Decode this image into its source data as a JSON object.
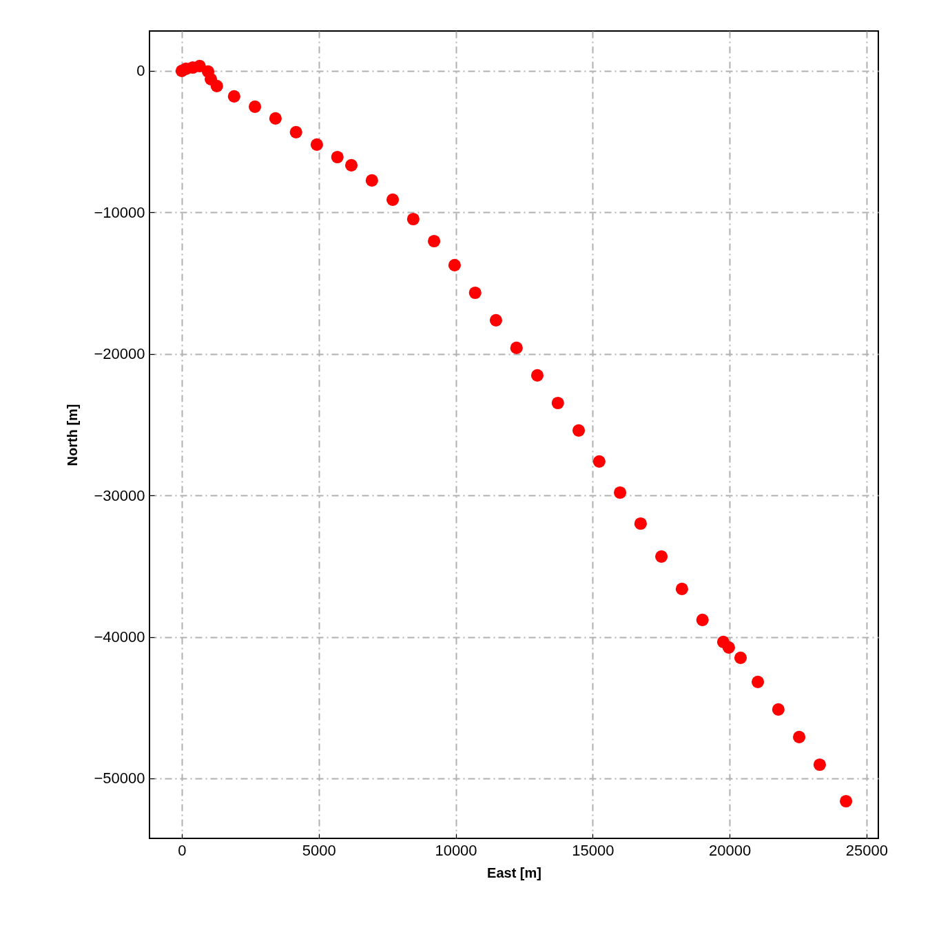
{
  "chart_data": {
    "type": "scatter",
    "xlabel": "East [m]",
    "ylabel": "North [m]",
    "x": [
      0,
      150,
      400,
      650,
      960,
      1060,
      1280,
      1910,
      2670,
      3420,
      4170,
      4930,
      5680,
      6190,
      6940,
      7700,
      8450,
      9210,
      9960,
      10710,
      11470,
      12220,
      12980,
      13730,
      14490,
      15240,
      16000,
      16750,
      17510,
      18260,
      19010,
      19770,
      19970,
      20400,
      21030,
      21780,
      22540,
      23290,
      24250
    ],
    "series": [
      {
        "color": "#ff0000",
        "values": [
          0,
          150,
          240,
          340,
          -50,
          -580,
          -1070,
          -1800,
          -2530,
          -3360,
          -4330,
          -5210,
          -6090,
          -6670,
          -7740,
          -9100,
          -10470,
          -12030,
          -13730,
          -15680,
          -17620,
          -19570,
          -21520,
          -23470,
          -25410,
          -27600,
          -29800,
          -31990,
          -34320,
          -36610,
          -38800,
          -40360,
          -40750,
          -41480,
          -43180,
          -45130,
          -47080,
          -49030,
          -51610
        ]
      }
    ],
    "xlim": [
      -1180,
      25430
    ],
    "ylim": [
      -54240,
      2820
    ],
    "xticks": [
      0,
      5000,
      10000,
      15000,
      20000,
      25000
    ],
    "yticks": [
      {
        "value": -50000,
        "label": "−50000"
      },
      {
        "value": -40000,
        "label": "−40000"
      },
      {
        "value": -30000,
        "label": "−30000"
      },
      {
        "value": -20000,
        "label": "−20000"
      },
      {
        "value": -10000,
        "label": "−10000"
      },
      0
    ],
    "grid": true,
    "marker": "circle"
  }
}
